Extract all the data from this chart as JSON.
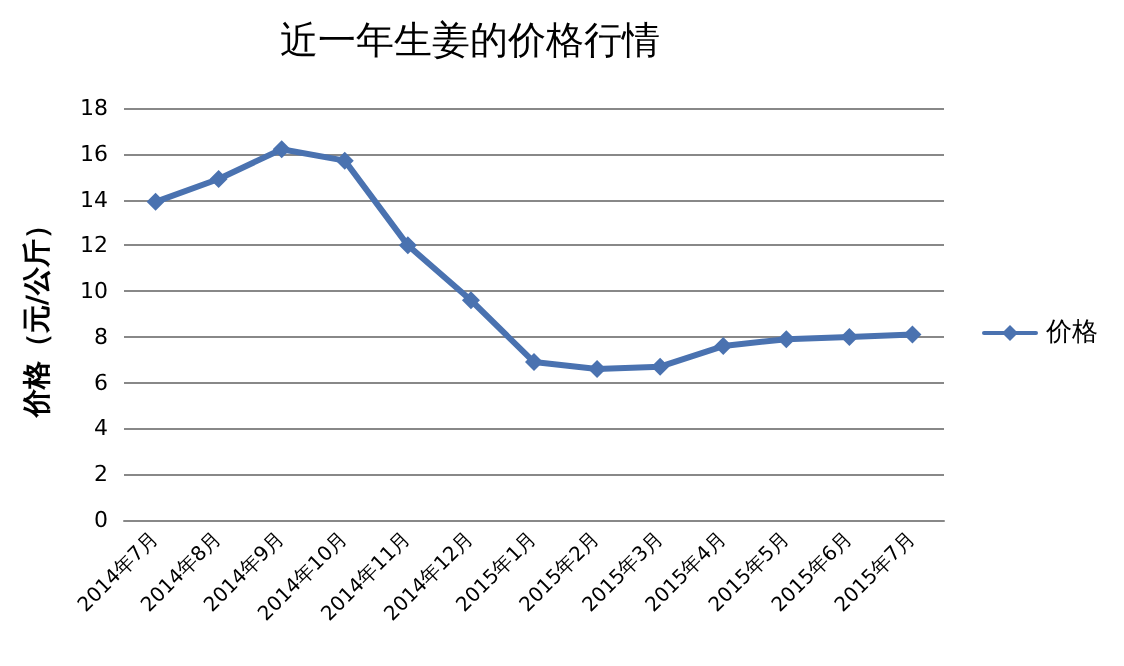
{
  "chart_data": {
    "type": "line",
    "title": "近一年生姜的价格行情",
    "ylabel": "价格（元/公斤）",
    "categories": [
      "2014年7月",
      "2014年8月",
      "2014年9月",
      "2014年10月",
      "2014年11月",
      "2014年12月",
      "2015年1月",
      "2015年2月",
      "2015年3月",
      "2015年4月",
      "2015年5月",
      "2015年6月",
      "2015年7月"
    ],
    "series": [
      {
        "name": "价格",
        "color": "#4a72b0",
        "values": [
          13.9,
          14.9,
          16.2,
          15.7,
          12.0,
          9.6,
          6.9,
          6.6,
          6.7,
          7.6,
          7.9,
          8.0,
          8.1
        ]
      }
    ],
    "ylim": [
      0,
      18
    ],
    "yticks": [
      0,
      2,
      4,
      6,
      8,
      10,
      12,
      14,
      16,
      18
    ],
    "grid": "y",
    "legend": "right",
    "marker": "diamond",
    "line_style": "solid"
  }
}
